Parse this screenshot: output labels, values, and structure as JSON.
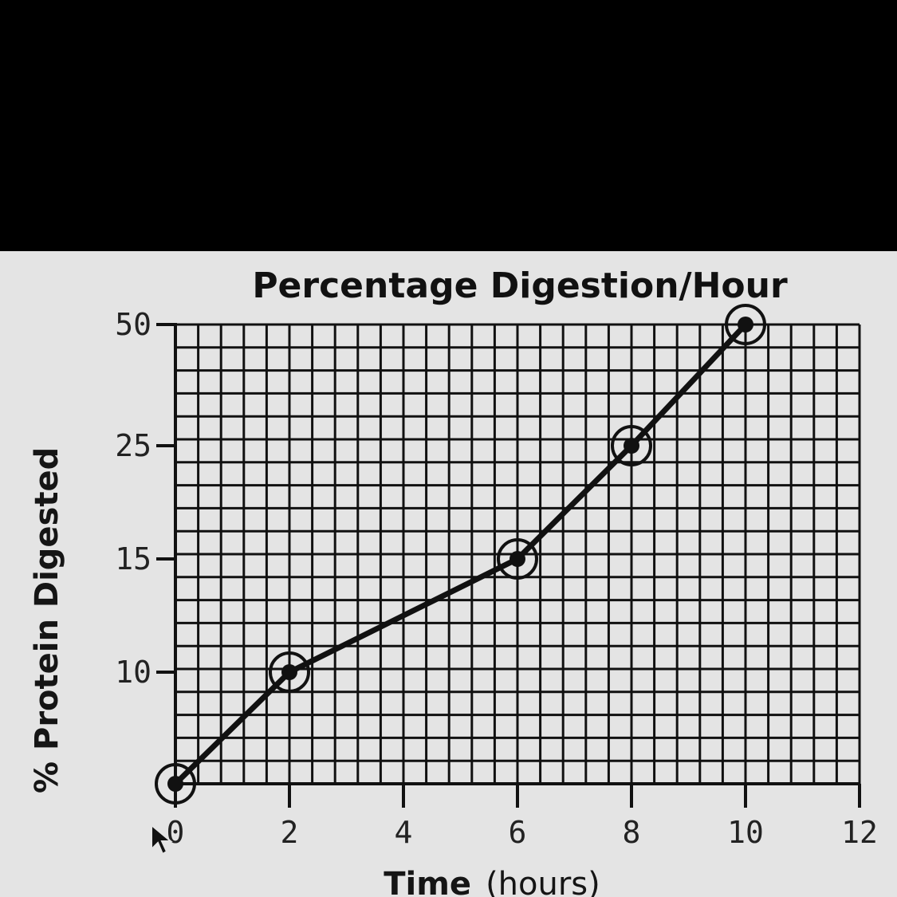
{
  "chart_data": {
    "type": "line",
    "title": "Percentage Digestion/Hour",
    "xlabel": "Time (hours)",
    "xlabel_main": "Time",
    "xlabel_unit": "(hours)",
    "ylabel": "% Protein Digested",
    "x_ticks": [
      "0",
      "2",
      "4",
      "6",
      "8",
      "10",
      "12"
    ],
    "y_ticks": [
      "10",
      "15",
      "25",
      "50"
    ],
    "xlim": [
      0,
      12
    ],
    "grid": true,
    "legend": "none",
    "series": [
      {
        "x": [
          0,
          2,
          6,
          8,
          10
        ],
        "y_labels": [
          "0",
          "10",
          "15",
          "25",
          "50"
        ],
        "y": [
          0,
          10,
          15,
          25,
          50
        ],
        "marker": "circled-dot"
      }
    ]
  },
  "colors": {
    "background": "#000000",
    "paper": "#e4e4e4",
    "ink": "#111111"
  }
}
